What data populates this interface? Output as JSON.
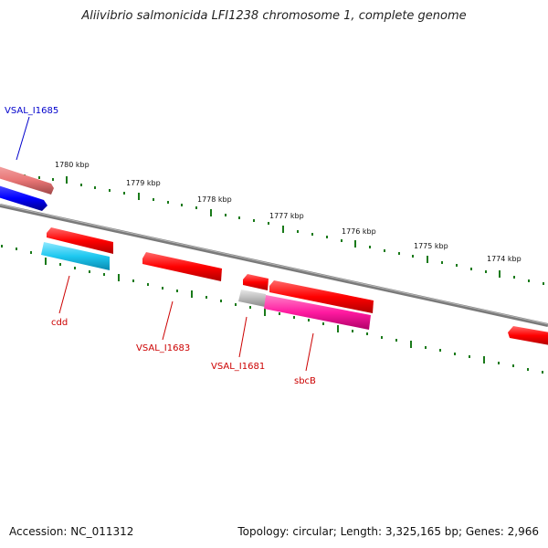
{
  "title": "Aliivibrio salmonicida LFI1238 chromosome 1, complete genome",
  "footer": {
    "accession": "Accession: NC_011312",
    "info": "Topology: circular; Length: 3,325,165 bp; Genes: 2,966"
  },
  "ticks": [
    "1780 kbp",
    "1779 kbp",
    "1778 kbp",
    "1777 kbp",
    "1776 kbp",
    "1775 kbp",
    "1774 kbp"
  ],
  "genes": {
    "vsal_i1685": "VSAL_I1685",
    "cdd": "cdd",
    "vsal_i1683": "VSAL_I1683",
    "vsal_i1681": "VSAL_I1681",
    "sbcb": "sbcB"
  },
  "colors": {
    "forward": "#ff0000",
    "forward_light": "#e87575",
    "blue": "#0000ff",
    "cyan": "#1ec8f0",
    "magenta": "#ff1aa0",
    "gray": "#bbbbbb",
    "blue_label": "#0000cc",
    "red_label": "#cc0000",
    "tick": "#1a7a1a",
    "backbone": "#7a7a7a"
  }
}
